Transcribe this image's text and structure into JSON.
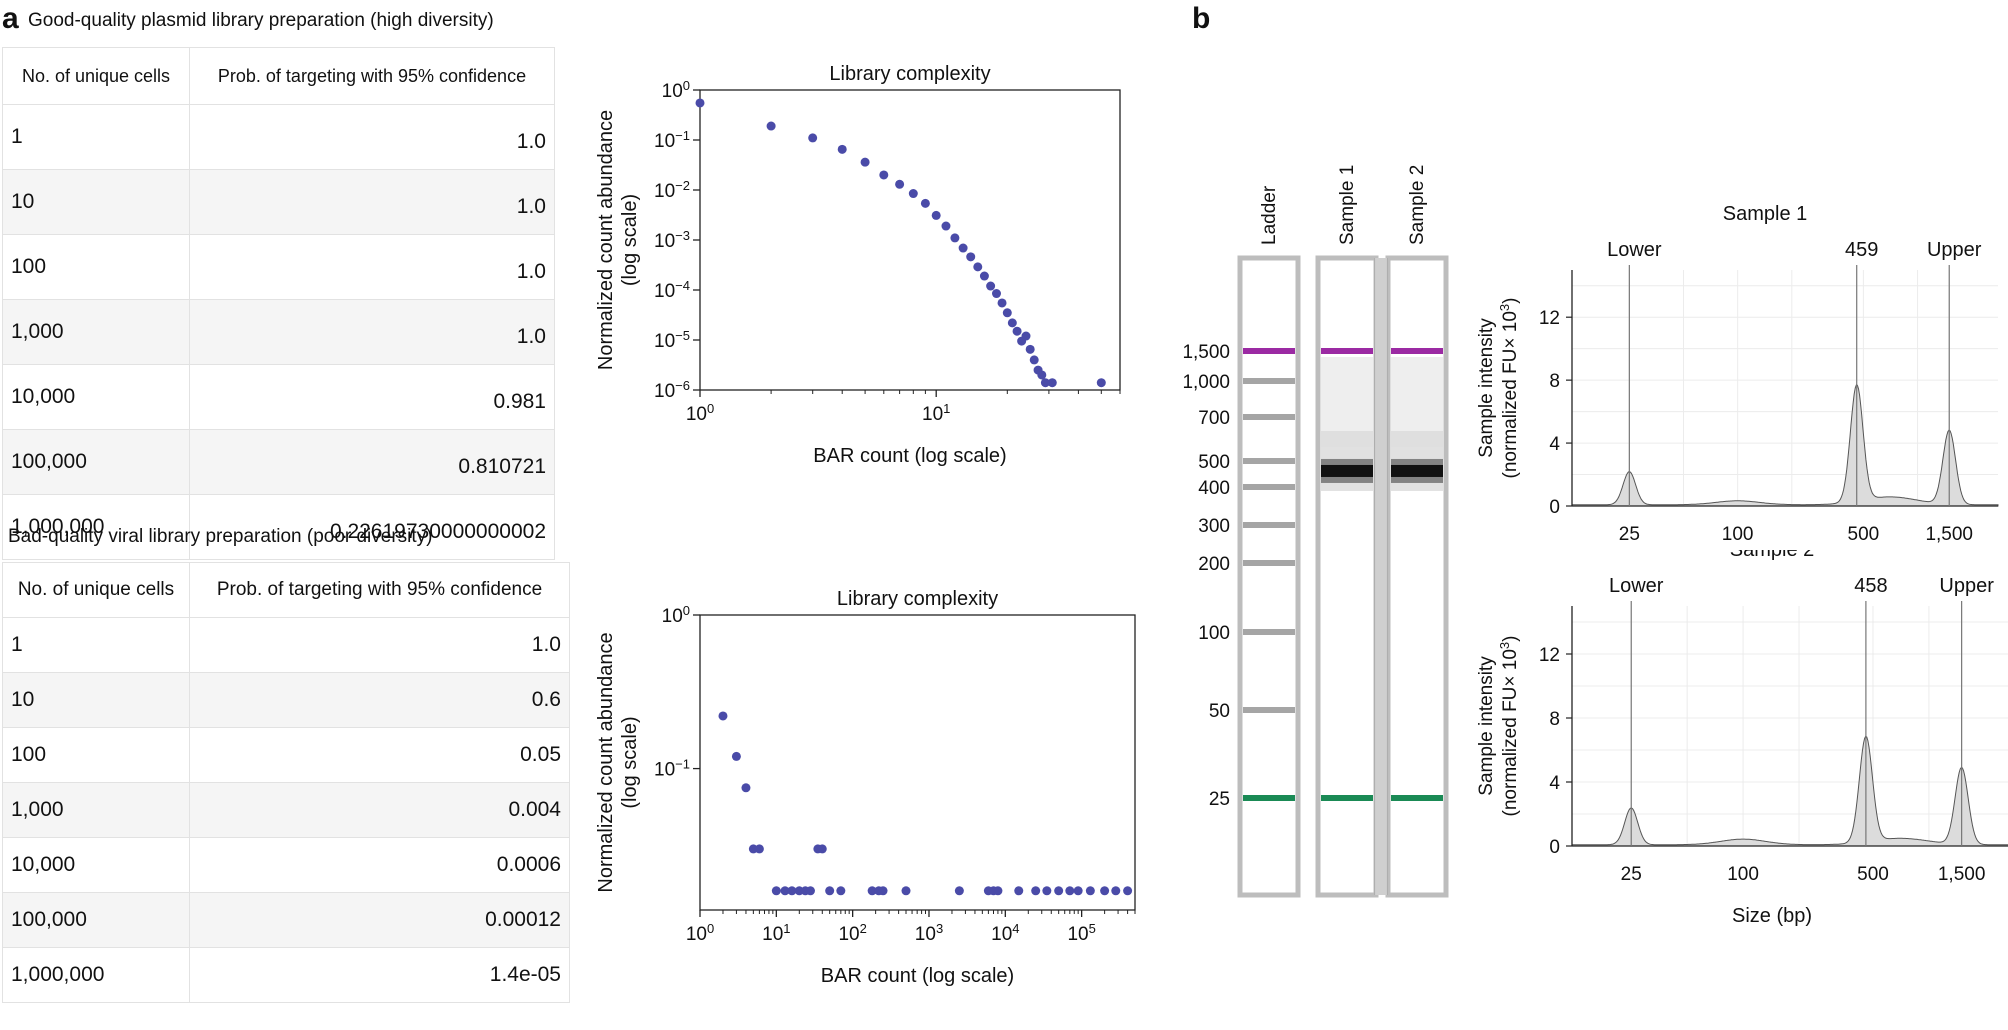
{
  "panel_a": {
    "label": "a",
    "table1": {
      "caption": "Good-quality plasmid library preparation (high diversity)",
      "headers": [
        "No. of unique cells",
        "Prob. of targeting with 95% confidence"
      ],
      "rows": [
        [
          "1",
          "1.0"
        ],
        [
          "10",
          "1.0"
        ],
        [
          "100",
          "1.0"
        ],
        [
          "1,000",
          "1.0"
        ],
        [
          "10,000",
          "0.981"
        ],
        [
          "100,000",
          "0.810721"
        ],
        [
          "1,000,000",
          "0.22619730000000002"
        ]
      ]
    },
    "table2": {
      "caption": "Bad-quality viral library preparation (poor diversity)",
      "headers": [
        "No. of unique cells",
        "Prob. of targeting with 95% confidence"
      ],
      "rows": [
        [
          "1",
          "1.0"
        ],
        [
          "10",
          "0.6"
        ],
        [
          "100",
          "0.05"
        ],
        [
          "1,000",
          "0.004"
        ],
        [
          "10,000",
          "0.0006"
        ],
        [
          "100,000",
          "0.00012"
        ],
        [
          "1,000,000",
          "1.4e-05"
        ]
      ]
    }
  },
  "panel_b": {
    "label": "b",
    "gel": {
      "lane_labels": [
        "Ladder",
        "Sample 1",
        "Sample 2"
      ],
      "size_labels": [
        "1,500",
        "1,000",
        "700",
        "500",
        "400",
        "300",
        "200",
        "100",
        "50",
        "25"
      ],
      "upper_marker_color": "#9b2aa3",
      "lower_marker_color": "#1a8a55"
    }
  },
  "chart_data": [
    {
      "type": "scatter",
      "title": "Library complexity",
      "xlabel": "BAR count (log scale)",
      "ylabel": "Normalized count abundance\n(log scale)",
      "xscale": "log",
      "yscale": "log",
      "xlim": [
        1,
        60
      ],
      "ylim": [
        1e-06,
        1
      ],
      "xticks": [
        "10^0",
        "10^1"
      ],
      "yticks": [
        "10^0",
        "10^−1",
        "10^−2",
        "10^−3",
        "10^−4",
        "10^−5",
        "10^−6"
      ],
      "color": "#4a4ba8",
      "points": [
        [
          1,
          0.55
        ],
        [
          2,
          0.19
        ],
        [
          3,
          0.11
        ],
        [
          4,
          0.065
        ],
        [
          5,
          0.036
        ],
        [
          6,
          0.02
        ],
        [
          7,
          0.013
        ],
        [
          8,
          0.0085
        ],
        [
          9,
          0.0054
        ],
        [
          10,
          0.0031
        ],
        [
          11,
          0.0019
        ],
        [
          12,
          0.0011
        ],
        [
          13,
          0.00069
        ],
        [
          14,
          0.00046
        ],
        [
          15,
          0.00029
        ],
        [
          16,
          0.00019
        ],
        [
          17,
          0.00012
        ],
        [
          18,
          8.5e-05
        ],
        [
          19,
          5.5e-05
        ],
        [
          20,
          3.5e-05
        ],
        [
          21,
          2.2e-05
        ],
        [
          22,
          1.5e-05
        ],
        [
          23,
          9.5e-06
        ],
        [
          24,
          1.2e-05
        ],
        [
          25,
          6.5e-06
        ],
        [
          26,
          4e-06
        ],
        [
          27,
          2.5e-06
        ],
        [
          28,
          2e-06
        ],
        [
          29,
          1.4e-06
        ],
        [
          31,
          1.4e-06
        ],
        [
          50,
          1.4e-06
        ]
      ]
    },
    {
      "type": "scatter",
      "title": "Library complexity",
      "xlabel": "BAR count (log scale)",
      "ylabel": "Normalized count abundance\n(log scale)",
      "xscale": "log",
      "yscale": "log",
      "xlim": [
        1,
        500000
      ],
      "ylim": [
        0.012,
        1
      ],
      "xticks": [
        "10^0",
        "10^1",
        "10^2",
        "10^3",
        "10^4",
        "10^5"
      ],
      "yticks": [
        "10^0",
        "10^−1"
      ],
      "color": "#4a4ba8",
      "points": [
        [
          2,
          0.22
        ],
        [
          3,
          0.12
        ],
        [
          4,
          0.075
        ],
        [
          5,
          0.03
        ],
        [
          6,
          0.03
        ],
        [
          10,
          0.016
        ],
        [
          13,
          0.016
        ],
        [
          16,
          0.016
        ],
        [
          20,
          0.016
        ],
        [
          24,
          0.016
        ],
        [
          28,
          0.016
        ],
        [
          35,
          0.03
        ],
        [
          40,
          0.03
        ],
        [
          50,
          0.016
        ],
        [
          70,
          0.016
        ],
        [
          180,
          0.016
        ],
        [
          220,
          0.016
        ],
        [
          250,
          0.016
        ],
        [
          500,
          0.016
        ],
        [
          2500,
          0.016
        ],
        [
          6000,
          0.016
        ],
        [
          7000,
          0.016
        ],
        [
          8000,
          0.016
        ],
        [
          15000,
          0.016
        ],
        [
          25000,
          0.016
        ],
        [
          35000,
          0.016
        ],
        [
          50000,
          0.016
        ],
        [
          70000,
          0.016
        ],
        [
          90000,
          0.016
        ],
        [
          130000,
          0.016
        ],
        [
          200000,
          0.016
        ],
        [
          280000,
          0.016
        ],
        [
          400000,
          0.016
        ]
      ]
    },
    {
      "type": "area",
      "title": "Sample 1",
      "xlabel": "",
      "ylabel": "Sample intensity\n(normalized FU× 10^3)",
      "xscale": "log",
      "xlim": [
        12,
        2800
      ],
      "ylim": [
        0,
        15
      ],
      "xticks": [
        "25",
        "100",
        "500",
        "1,500"
      ],
      "yticks": [
        "0",
        "4",
        "8",
        "12"
      ],
      "markers": [
        {
          "label": "Lower",
          "x": 25
        },
        {
          "label": "459",
          "x": 459
        },
        {
          "label": "Upper",
          "x": 1500
        }
      ],
      "peaks": [
        {
          "x": 25,
          "height": 2.1
        },
        {
          "x": 100,
          "height": 0.25
        },
        {
          "x": 459,
          "height": 7.4
        },
        {
          "x": 700,
          "height": 0.5
        },
        {
          "x": 1500,
          "height": 4.7
        }
      ]
    },
    {
      "type": "area",
      "title": "Sample 2",
      "xlabel": "Size  (bp)",
      "ylabel": "Sample intensity\n(normalized FU× 10^3)",
      "xscale": "log",
      "xlim": [
        12,
        2800
      ],
      "ylim": [
        0,
        15
      ],
      "xticks": [
        "25",
        "100",
        "500",
        "1,500"
      ],
      "yticks": [
        "0",
        "4",
        "8",
        "12"
      ],
      "markers": [
        {
          "label": "Lower",
          "x": 25
        },
        {
          "label": "458",
          "x": 458
        },
        {
          "label": "Upper",
          "x": 1500
        }
      ],
      "peaks": [
        {
          "x": 25,
          "height": 2.3
        },
        {
          "x": 100,
          "height": 0.35
        },
        {
          "x": 458,
          "height": 6.6
        },
        {
          "x": 700,
          "height": 0.4
        },
        {
          "x": 1500,
          "height": 4.8
        }
      ]
    }
  ]
}
